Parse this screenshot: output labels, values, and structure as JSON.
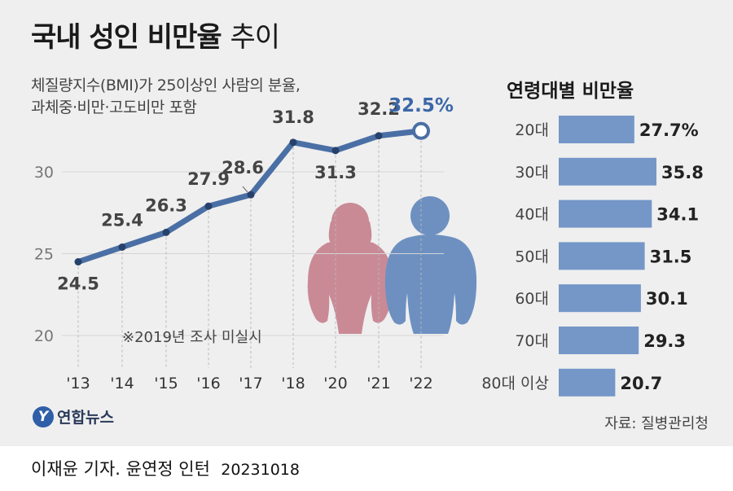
{
  "title": {
    "main": "국내 성인 비만율",
    "sub": "추이"
  },
  "subtitle": {
    "line1": "체질량지수(BMI)가 25이상인 사람의 분율,",
    "line2": "과체중·비만·고도비만 포함"
  },
  "note": "※2019년 조사 미실시",
  "source": "자료: 질병관리청",
  "logo": {
    "mark": "Y",
    "text": "연합뉴스"
  },
  "credit": {
    "author": "이재윤 기자. 윤연정 인턴",
    "date": "20231018"
  },
  "colors": {
    "line": "#4a6fa5",
    "bar": "#7597c8",
    "female": "#c98a96",
    "male": "#6d90c1"
  },
  "chart_data": [
    {
      "type": "line",
      "x": [
        "'13",
        "'14",
        "'15",
        "'16",
        "'17",
        "'18",
        "'20",
        "'21",
        "'22"
      ],
      "values": [
        24.5,
        25.4,
        26.3,
        27.9,
        28.6,
        31.8,
        31.3,
        32.2,
        32.5
      ],
      "value_labels": [
        "24.5",
        "25.4",
        "26.3",
        "27.9",
        "28.6",
        "31.8",
        "31.3",
        "32.2",
        "32.5%"
      ],
      "yticks": [
        20,
        25,
        30
      ],
      "ylim": [
        20,
        33
      ],
      "grid": true
    },
    {
      "type": "bar",
      "title": "연령대별 비만율",
      "categories": [
        "20대",
        "30대",
        "40대",
        "50대",
        "60대",
        "70대",
        "80대 이상"
      ],
      "values": [
        27.7,
        35.8,
        34.1,
        31.5,
        30.1,
        29.3,
        20.7
      ],
      "value_labels": [
        "27.7%",
        "35.8",
        "34.1",
        "31.5",
        "30.1",
        "29.3",
        "20.7"
      ],
      "orientation": "horizontal"
    }
  ]
}
